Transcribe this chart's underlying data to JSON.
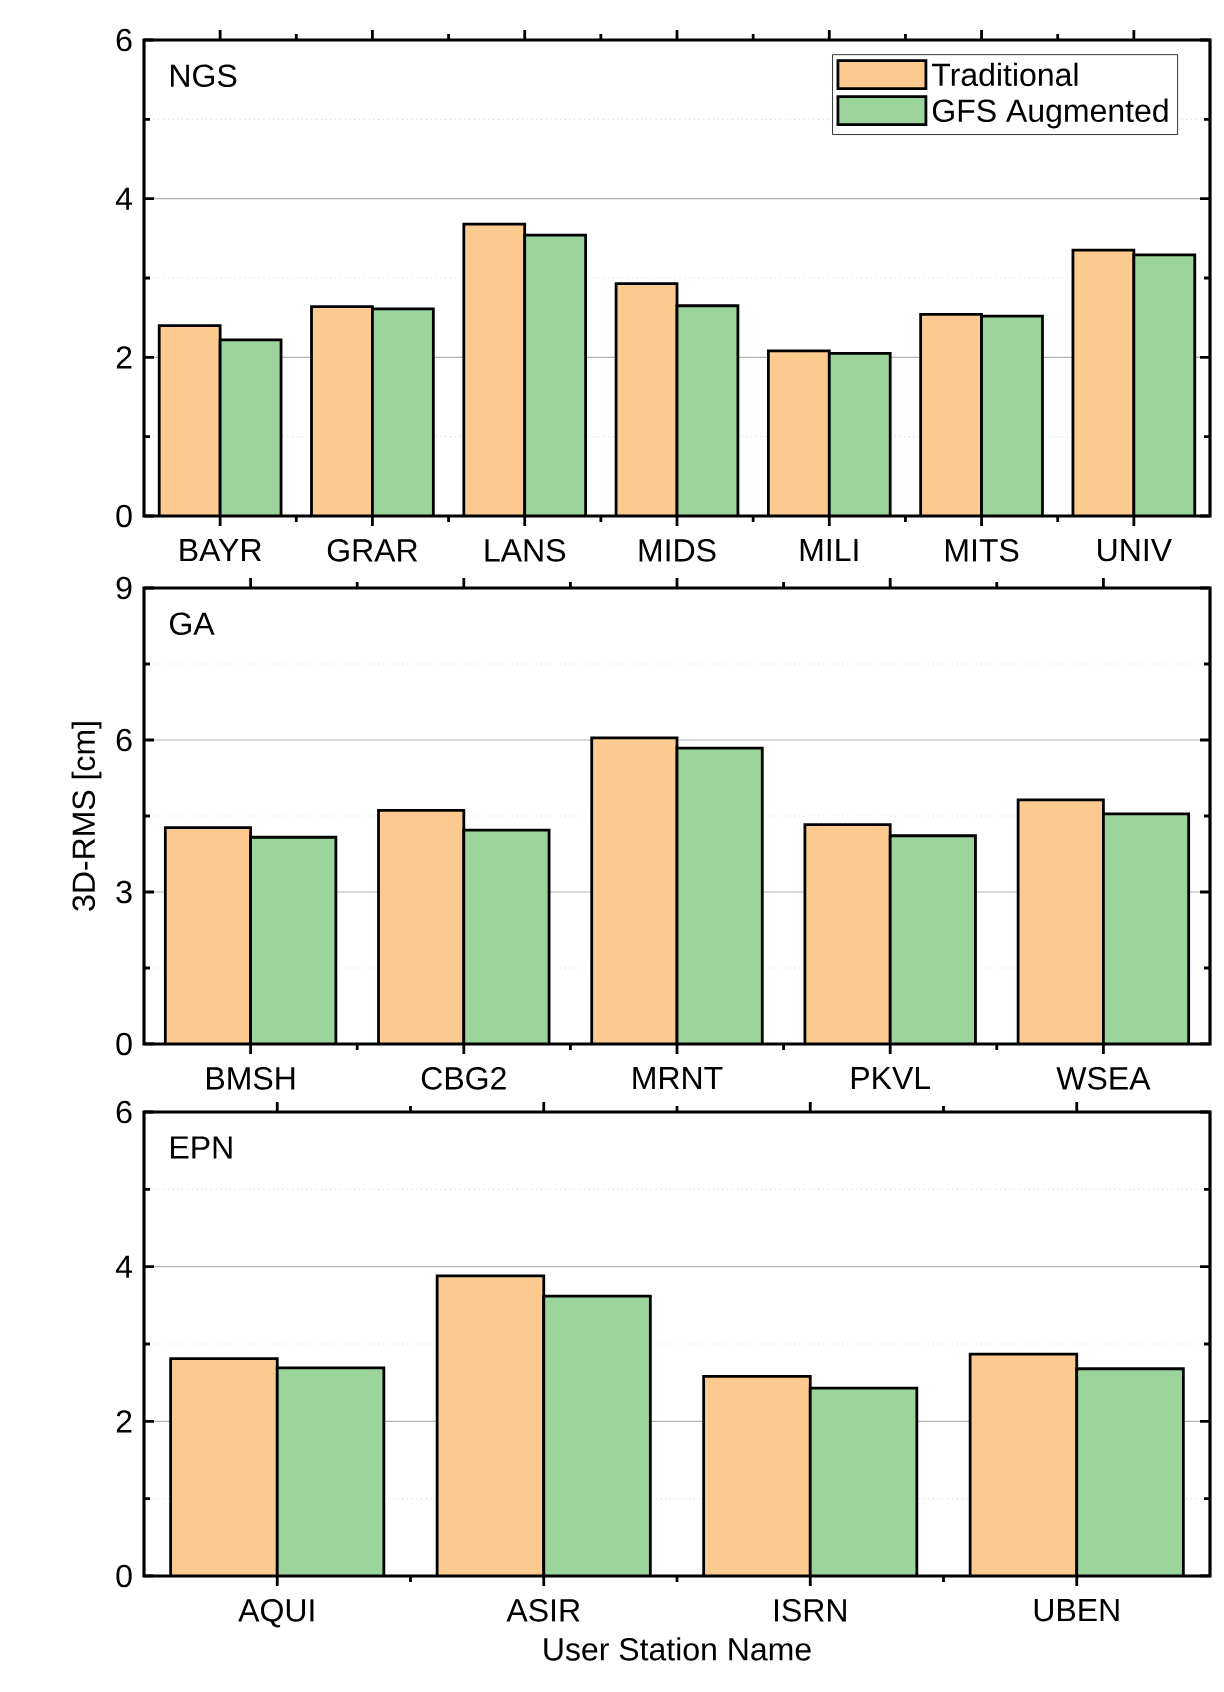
{
  "chart_data": [
    {
      "type": "bar",
      "title": "NGS",
      "categories": [
        "BAYR",
        "GRAR",
        "LANS",
        "MIDS",
        "MILI",
        "MITS",
        "UNIV"
      ],
      "series": [
        {
          "name": "Traditional",
          "color": "#fdcb8f",
          "values": [
            2.4,
            2.64,
            3.68,
            2.93,
            2.08,
            2.54,
            3.35
          ]
        },
        {
          "name": "GFS Augmented",
          "color": "#9bd59b",
          "values": [
            2.22,
            2.61,
            3.54,
            2.65,
            2.05,
            2.52,
            3.29
          ]
        }
      ],
      "ylim": [
        0,
        6
      ],
      "yticks": [
        0,
        2,
        4,
        6
      ],
      "grid": "y",
      "legend": "top right"
    },
    {
      "type": "bar",
      "title": "GA",
      "ylabel": "3D-RMS [cm]",
      "categories": [
        "BMSH",
        "CBG2",
        "MRNT",
        "PKVL",
        "WSEA"
      ],
      "series": [
        {
          "color": "#fdcb8f",
          "values": [
            4.27,
            4.61,
            6.04,
            4.33,
            4.82
          ]
        },
        {
          "color": "#9bd59b",
          "values": [
            4.08,
            4.22,
            5.84,
            4.11,
            4.54
          ]
        }
      ],
      "ylim": [
        0,
        9
      ],
      "yticks": [
        0,
        3,
        6,
        9
      ],
      "grid": "y"
    },
    {
      "type": "bar",
      "title": "EPN",
      "xlabel": "User Station Name",
      "categories": [
        "AQUI",
        "ASIR",
        "ISRN",
        "UBEN"
      ],
      "series": [
        {
          "color": "#fdcb8f",
          "values": [
            2.81,
            3.88,
            2.58,
            2.87
          ]
        },
        {
          "color": "#9bd59b",
          "values": [
            2.69,
            3.62,
            2.43,
            2.68
          ]
        }
      ],
      "ylim": [
        0,
        6
      ],
      "yticks": [
        0,
        2,
        4,
        6
      ],
      "grid": "y"
    }
  ]
}
